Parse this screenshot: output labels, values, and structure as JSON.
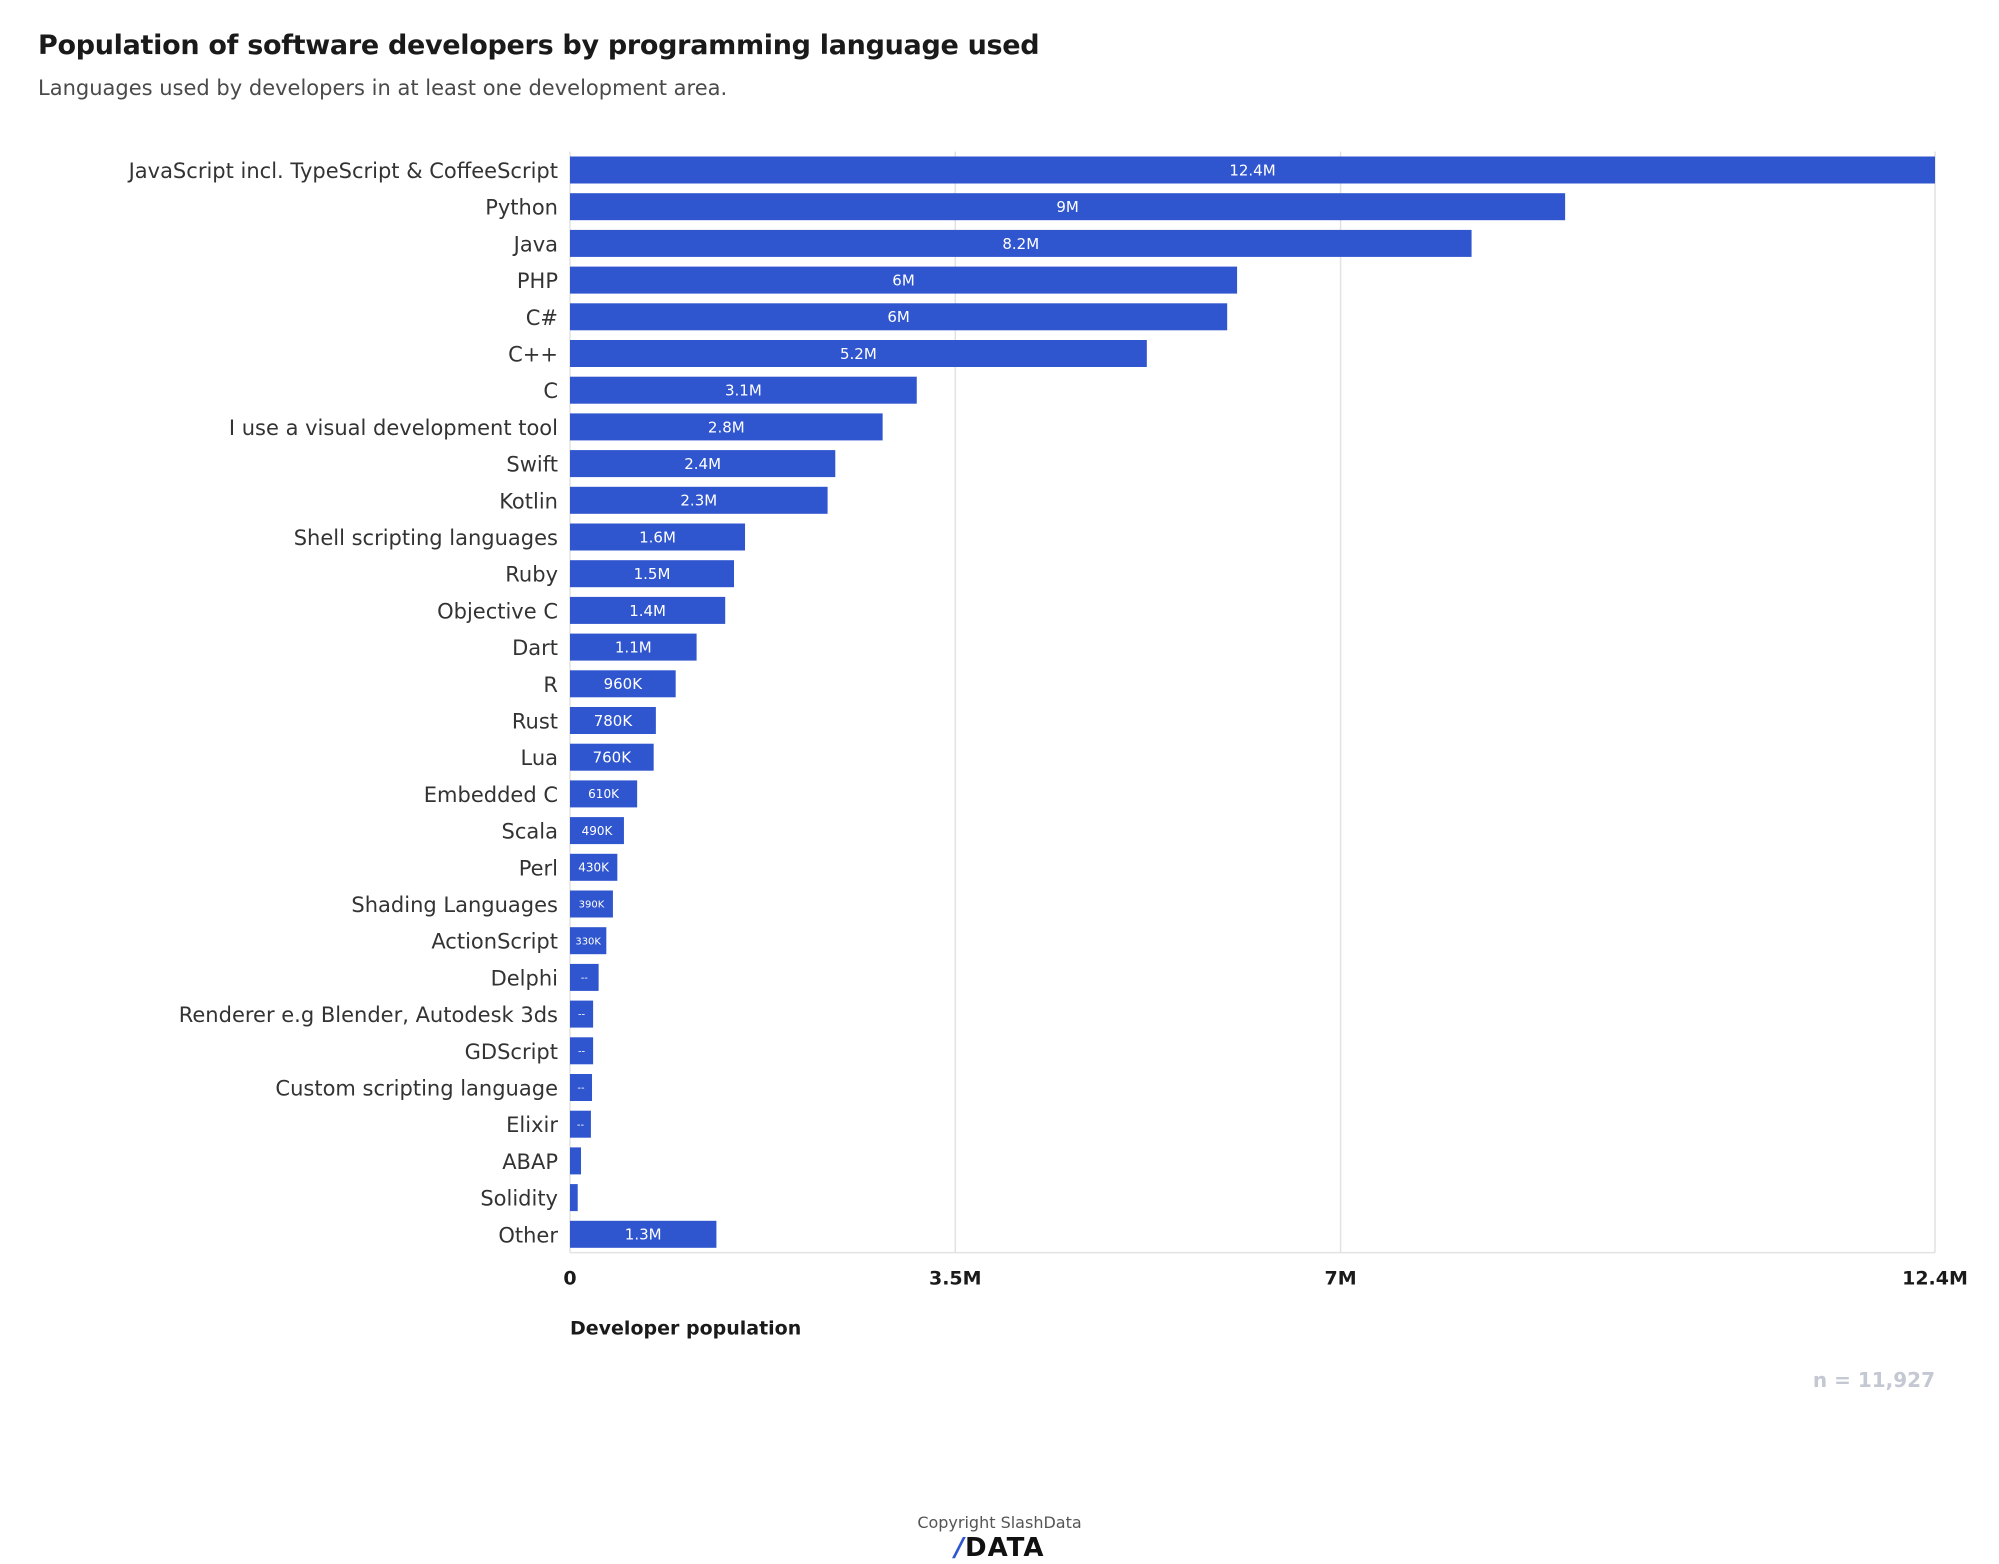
{
  "header": {
    "title": "Population of software developers by programming language used",
    "subtitle": "Languages used by developers in at least one development area."
  },
  "footer": {
    "sample_size": "n = 11,927",
    "copyright": "Copyright SlashData",
    "logo_slash": "/",
    "logo_text": "DATA"
  },
  "colors": {
    "bar": "#2f55cf",
    "gridline": "#e2e2e2",
    "bar_label": "#ffffff"
  },
  "chart_data": {
    "type": "bar",
    "orientation": "horizontal",
    "title": "Population of software developers by programming language used",
    "subtitle": "Languages used by developers in at least one development area.",
    "xlabel": "Developer population",
    "ylabel": "",
    "xlim": [
      0,
      12.4
    ],
    "x_ticks": [
      0,
      3.5,
      7,
      12.4
    ],
    "x_tick_labels": [
      "0",
      "3.5M",
      "7M",
      "12.4M"
    ],
    "grid": "vertical",
    "unit": "million developers",
    "categories": [
      "JavaScript incl. TypeScript & CoffeeScript",
      "Python",
      "Java",
      "PHP",
      "C#",
      "C++",
      "C",
      "I use a visual development tool",
      "Swift",
      "Kotlin",
      "Shell scripting languages",
      "Ruby",
      "Objective C",
      "Dart",
      "R",
      "Rust",
      "Lua",
      "Embedded C",
      "Scala",
      "Perl",
      "Shading Languages",
      "ActionScript",
      "Delphi",
      "Renderer e.g Blender, Autodesk 3ds",
      "GDScript",
      "Custom scripting language",
      "Elixir",
      "ABAP",
      "Solidity",
      "Other"
    ],
    "values": [
      12.4,
      9.04,
      8.19,
      6.06,
      5.97,
      5.24,
      3.15,
      2.84,
      2.41,
      2.34,
      1.59,
      1.49,
      1.41,
      1.15,
      0.96,
      0.78,
      0.76,
      0.61,
      0.49,
      0.43,
      0.39,
      0.33,
      0.26,
      0.21,
      0.21,
      0.2,
      0.19,
      0.1,
      0.07,
      1.33
    ],
    "data_labels": [
      "12.4M",
      "9M",
      "8.2M",
      "6M",
      "6M",
      "5.2M",
      "3.1M",
      "2.8M",
      "2.4M",
      "2.3M",
      "1.6M",
      "1.5M",
      "1.4M",
      "1.1M",
      "960K",
      "780K",
      "760K",
      "610K",
      "490K",
      "430K",
      "390K",
      "330K",
      "--",
      "--",
      "--",
      "--",
      "--",
      "",
      "",
      "1.3M"
    ]
  }
}
